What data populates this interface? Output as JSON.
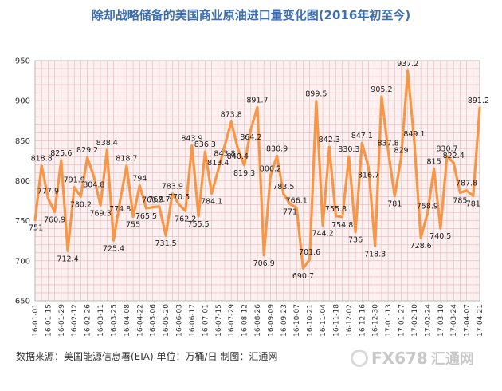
{
  "title": "除却战略储备的美国商业原油进口量变化图(2016年初至今)",
  "footer": "数据来源：美国能源信息署(EIA)   单位：万桶/日   制图：汇通网",
  "logo": {
    "text": "FX678",
    "cn": "汇通网"
  },
  "colors": {
    "line": "#f79646",
    "plot_bg": "#fdf0f0",
    "grid": "#e3b9b9",
    "title": "#3d6fb0"
  },
  "chart_data": {
    "type": "line",
    "title": "除却战略储备的美国商业原油进口量变化图(2016年初至今)",
    "xlabel": "",
    "ylabel": "",
    "ylim": [
      650,
      950
    ],
    "yticks": [
      650,
      700,
      750,
      800,
      850,
      900,
      950
    ],
    "grid": true,
    "xticks": [
      "16-01-01",
      "16-01-15",
      "16-01-29",
      "16-02-12",
      "16-02-26",
      "16-03-11",
      "16-03-25",
      "16-04-08",
      "16-04-22",
      "16-05-06",
      "16-05-20",
      "16-06-03",
      "16-06-17",
      "16-07-01",
      "16-07-15",
      "16-07-29",
      "16-08-12",
      "16-08-26",
      "16-09-09",
      "16-09-23",
      "16-10-07",
      "16-10-21",
      "16-11-04",
      "16-11-18",
      "16-12-02",
      "16-12-16",
      "16-12-30",
      "17-01-13",
      "17-01-27",
      "17-02-10",
      "17-02-24",
      "17-03-10",
      "17-03-24",
      "17-04-07",
      "17-04-21"
    ],
    "series": [
      {
        "values": [
          751,
          818.8,
          777.9,
          760.9,
          825.6,
          712.4,
          791.9,
          780.2,
          829.2,
          804.8,
          769.3,
          838.4,
          725.4,
          774.8,
          818.7,
          755,
          794,
          765.5,
          766.9,
          767.7,
          731.5,
          783.9,
          770.5,
          762.2,
          843.9,
          755.5,
          836.3,
          784.1,
          813.4,
          843.8,
          873.8,
          840.4,
          819.3,
          864.2,
          891.7,
          706.9,
          806.2,
          830.9,
          783.5,
          771,
          766.1,
          690.7,
          701.6,
          899.5,
          744.2,
          842.3,
          755.8,
          754.8,
          830.3,
          736,
          847.1,
          816.7,
          718.3,
          905.2,
          837.8,
          781,
          829,
          937.2,
          849.1,
          728.6,
          758.9,
          815,
          740.5,
          830.7,
          822.4,
          785,
          787.8,
          781,
          891.2
        ]
      }
    ],
    "data_labels": [
      {
        "i": 0,
        "v": "751"
      },
      {
        "i": 1,
        "v": "818.8"
      },
      {
        "i": 2,
        "v": "777.9"
      },
      {
        "i": 3,
        "v": "760.9"
      },
      {
        "i": 4,
        "v": "825.6"
      },
      {
        "i": 5,
        "v": "712.4"
      },
      {
        "i": 6,
        "v": "791.9"
      },
      {
        "i": 7,
        "v": "780.2"
      },
      {
        "i": 8,
        "v": "829.2"
      },
      {
        "i": 9,
        "v": "804.8"
      },
      {
        "i": 10,
        "v": "769.3"
      },
      {
        "i": 11,
        "v": "838.4"
      },
      {
        "i": 12,
        "v": "725.4"
      },
      {
        "i": 13,
        "v": "774.8"
      },
      {
        "i": 14,
        "v": "818.7"
      },
      {
        "i": 15,
        "v": "755"
      },
      {
        "i": 16,
        "v": "794"
      },
      {
        "i": 17,
        "v": "765.5"
      },
      {
        "i": 18,
        "v": "766.9"
      },
      {
        "i": 19,
        "v": "767.7"
      },
      {
        "i": 20,
        "v": "731.5"
      },
      {
        "i": 21,
        "v": "783.9"
      },
      {
        "i": 22,
        "v": "770.5"
      },
      {
        "i": 23,
        "v": "762.2"
      },
      {
        "i": 24,
        "v": "843.9"
      },
      {
        "i": 25,
        "v": "755.5"
      },
      {
        "i": 26,
        "v": "836.3"
      },
      {
        "i": 27,
        "v": "784.1"
      },
      {
        "i": 28,
        "v": "813.4"
      },
      {
        "i": 29,
        "v": "843.8"
      },
      {
        "i": 30,
        "v": "873.8"
      },
      {
        "i": 31,
        "v": "840.4"
      },
      {
        "i": 32,
        "v": "819.3"
      },
      {
        "i": 33,
        "v": "864.2"
      },
      {
        "i": 34,
        "v": "891.7"
      },
      {
        "i": 35,
        "v": "706.9"
      },
      {
        "i": 36,
        "v": "806.2"
      },
      {
        "i": 37,
        "v": "830.9"
      },
      {
        "i": 38,
        "v": "783.5"
      },
      {
        "i": 39,
        "v": "771"
      },
      {
        "i": 40,
        "v": "766.1"
      },
      {
        "i": 41,
        "v": "690.7"
      },
      {
        "i": 42,
        "v": "701.6"
      },
      {
        "i": 43,
        "v": "899.5"
      },
      {
        "i": 44,
        "v": "744.2"
      },
      {
        "i": 45,
        "v": "842.3"
      },
      {
        "i": 46,
        "v": "755.8"
      },
      {
        "i": 47,
        "v": "754.8"
      },
      {
        "i": 48,
        "v": "830.3"
      },
      {
        "i": 49,
        "v": "736"
      },
      {
        "i": 50,
        "v": "847.1"
      },
      {
        "i": 51,
        "v": "816.7"
      },
      {
        "i": 52,
        "v": "718.3"
      },
      {
        "i": 53,
        "v": "905.2"
      },
      {
        "i": 54,
        "v": "837.8"
      },
      {
        "i": 55,
        "v": "781"
      },
      {
        "i": 56,
        "v": "829"
      },
      {
        "i": 57,
        "v": "937.2"
      },
      {
        "i": 58,
        "v": "849.1"
      },
      {
        "i": 59,
        "v": "728.6"
      },
      {
        "i": 60,
        "v": "758.9"
      },
      {
        "i": 61,
        "v": "815"
      },
      {
        "i": 62,
        "v": "740.5"
      },
      {
        "i": 63,
        "v": "830.7"
      },
      {
        "i": 64,
        "v": "822.4"
      },
      {
        "i": 65,
        "v": "785"
      },
      {
        "i": 66,
        "v": "787.8"
      },
      {
        "i": 67,
        "v": "781"
      },
      {
        "i": 68,
        "v": "891.2"
      }
    ]
  }
}
